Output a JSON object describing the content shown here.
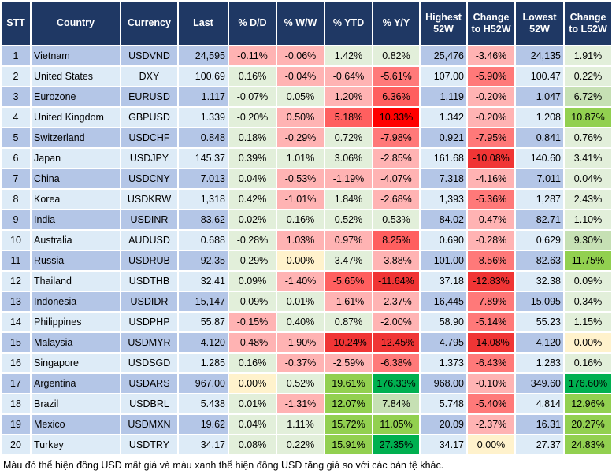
{
  "headers": [
    "STT",
    "Country",
    "Currency",
    "Last",
    "% D/D",
    "% W/W",
    "% YTD",
    "% Y/Y",
    "Highest 52W",
    "Change to H52W",
    "Lowest 52W",
    "Change to L52W"
  ],
  "colors": {
    "p": "#ffb3b3",
    "m": "#ff7979",
    "s": "#ff5f5f",
    "d": "#f03535",
    "x": "#ff0000",
    "g": "#e2efda",
    "h": "#c6e0b4",
    "G": "#92d050",
    "D": "#00b050",
    "y": "#fff2cc",
    "header": "#1f3864"
  },
  "rows": [
    {
      "stt": "1",
      "country": "Vietnam",
      "currency": "USDVND",
      "last": "24,595",
      "dd": "-0.11%",
      "ww": "-0.06%",
      "ytd": "1.42%",
      "yy": "0.82%",
      "high": "25,476",
      "ch": "-3.46%",
      "low": "24,135",
      "cl": "1.91%",
      "shade": [
        "p",
        "p",
        "g",
        "g",
        "p",
        "g"
      ]
    },
    {
      "stt": "2",
      "country": "United States",
      "currency": "DXY",
      "last": "100.69",
      "dd": "0.16%",
      "ww": "-0.04%",
      "ytd": "-0.64%",
      "yy": "-5.61%",
      "high": "107.00",
      "ch": "-5.90%",
      "low": "100.47",
      "cl": "0.22%",
      "shade": [
        "g",
        "p",
        "p",
        "m",
        "m",
        "g"
      ]
    },
    {
      "stt": "3",
      "country": "Eurozone",
      "currency": "EURUSD",
      "last": "1.117",
      "dd": "-0.07%",
      "ww": "0.05%",
      "ytd": "1.20%",
      "yy": "6.36%",
      "high": "1.119",
      "ch": "-0.20%",
      "low": "1.047",
      "cl": "6.72%",
      "shade": [
        "g",
        "g",
        "p",
        "s",
        "p",
        "h"
      ]
    },
    {
      "stt": "4",
      "country": "United Kingdom",
      "currency": "GBPUSD",
      "last": "1.339",
      "dd": "-0.20%",
      "ww": "0.50%",
      "ytd": "5.18%",
      "yy": "10.33%",
      "high": "1.342",
      "ch": "-0.20%",
      "low": "1.208",
      "cl": "10.87%",
      "shade": [
        "g",
        "p",
        "s",
        "x",
        "p",
        "G"
      ]
    },
    {
      "stt": "5",
      "country": "Switzerland",
      "currency": "USDCHF",
      "last": "0.848",
      "dd": "0.18%",
      "ww": "-0.29%",
      "ytd": "0.72%",
      "yy": "-7.98%",
      "high": "0.921",
      "ch": "-7.95%",
      "low": "0.841",
      "cl": "0.76%",
      "shade": [
        "g",
        "p",
        "g",
        "m",
        "m",
        "g"
      ]
    },
    {
      "stt": "6",
      "country": "Japan",
      "currency": "USDJPY",
      "last": "145.37",
      "dd": "0.39%",
      "ww": "1.01%",
      "ytd": "3.06%",
      "yy": "-2.85%",
      "high": "161.68",
      "ch": "-10.08%",
      "low": "140.60",
      "cl": "3.41%",
      "shade": [
        "g",
        "g",
        "g",
        "p",
        "d",
        "g"
      ]
    },
    {
      "stt": "7",
      "country": "China",
      "currency": "USDCNY",
      "last": "7.013",
      "dd": "0.04%",
      "ww": "-0.53%",
      "ytd": "-1.19%",
      "yy": "-4.07%",
      "high": "7.318",
      "ch": "-4.16%",
      "low": "7.011",
      "cl": "0.04%",
      "shade": [
        "g",
        "p",
        "p",
        "p",
        "p",
        "g"
      ]
    },
    {
      "stt": "8",
      "country": "Korea",
      "currency": "USDKRW",
      "last": "1,318",
      "dd": "0.42%",
      "ww": "-1.01%",
      "ytd": "1.84%",
      "yy": "-2.68%",
      "high": "1,393",
      "ch": "-5.36%",
      "low": "1,287",
      "cl": "2.43%",
      "shade": [
        "g",
        "p",
        "g",
        "p",
        "m",
        "g"
      ]
    },
    {
      "stt": "9",
      "country": "India",
      "currency": "USDINR",
      "last": "83.62",
      "dd": "0.02%",
      "ww": "0.16%",
      "ytd": "0.52%",
      "yy": "0.53%",
      "high": "84.02",
      "ch": "-0.47%",
      "low": "82.71",
      "cl": "1.10%",
      "shade": [
        "g",
        "g",
        "g",
        "g",
        "p",
        "g"
      ]
    },
    {
      "stt": "10",
      "country": "Australia",
      "currency": "AUDUSD",
      "last": "0.688",
      "dd": "-0.28%",
      "ww": "1.03%",
      "ytd": "0.97%",
      "yy": "8.25%",
      "high": "0.690",
      "ch": "-0.28%",
      "low": "0.629",
      "cl": "9.30%",
      "shade": [
        "g",
        "p",
        "p",
        "s",
        "p",
        "h"
      ]
    },
    {
      "stt": "11",
      "country": "Russia",
      "currency": "USDRUB",
      "last": "92.35",
      "dd": "-0.29%",
      "ww": "0.00%",
      "ytd": "3.47%",
      "yy": "-3.88%",
      "high": "101.00",
      "ch": "-8.56%",
      "low": "82.63",
      "cl": "11.75%",
      "shade": [
        "g",
        "y",
        "g",
        "p",
        "m",
        "G"
      ]
    },
    {
      "stt": "12",
      "country": "Thailand",
      "currency": "USDTHB",
      "last": "32.41",
      "dd": "0.09%",
      "ww": "-1.40%",
      "ytd": "-5.65%",
      "yy": "-11.64%",
      "high": "37.18",
      "ch": "-12.83%",
      "low": "32.38",
      "cl": "0.09%",
      "shade": [
        "g",
        "p",
        "s",
        "d",
        "d",
        "g"
      ]
    },
    {
      "stt": "13",
      "country": "Indonesia",
      "currency": "USDIDR",
      "last": "15,147",
      "dd": "-0.09%",
      "ww": "0.01%",
      "ytd": "-1.61%",
      "yy": "-2.37%",
      "high": "16,445",
      "ch": "-7.89%",
      "low": "15,095",
      "cl": "0.34%",
      "shade": [
        "g",
        "g",
        "p",
        "p",
        "m",
        "g"
      ]
    },
    {
      "stt": "14",
      "country": "Philippines",
      "currency": "USDPHP",
      "last": "55.87",
      "dd": "-0.15%",
      "ww": "0.40%",
      "ytd": "0.87%",
      "yy": "-2.00%",
      "high": "58.90",
      "ch": "-5.14%",
      "low": "55.23",
      "cl": "1.15%",
      "shade": [
        "p",
        "g",
        "g",
        "p",
        "m",
        "g"
      ]
    },
    {
      "stt": "15",
      "country": "Malaysia",
      "currency": "USDMYR",
      "last": "4.120",
      "dd": "-0.48%",
      "ww": "-1.90%",
      "ytd": "-10.24%",
      "yy": "-12.45%",
      "high": "4.795",
      "ch": "-14.08%",
      "low": "4.120",
      "cl": "0.00%",
      "shade": [
        "p",
        "p",
        "d",
        "d",
        "d",
        "y"
      ]
    },
    {
      "stt": "16",
      "country": "Singapore",
      "currency": "USDSGD",
      "last": "1.285",
      "dd": "0.16%",
      "ww": "-0.37%",
      "ytd": "-2.59%",
      "yy": "-6.38%",
      "high": "1.373",
      "ch": "-6.43%",
      "low": "1.283",
      "cl": "0.16%",
      "shade": [
        "g",
        "p",
        "p",
        "m",
        "m",
        "g"
      ]
    },
    {
      "stt": "17",
      "country": "Argentina",
      "currency": "USDARS",
      "last": "967.00",
      "dd": "0.00%",
      "ww": "0.52%",
      "ytd": "19.61%",
      "yy": "176.33%",
      "high": "968.00",
      "ch": "-0.10%",
      "low": "349.60",
      "cl": "176.60%",
      "shade": [
        "y",
        "g",
        "G",
        "D",
        "p",
        "D"
      ]
    },
    {
      "stt": "18",
      "country": "Brazil",
      "currency": "USDBRL",
      "last": "5.438",
      "dd": "0.01%",
      "ww": "-1.31%",
      "ytd": "12.07%",
      "yy": "7.84%",
      "high": "5.748",
      "ch": "-5.40%",
      "low": "4.814",
      "cl": "12.96%",
      "shade": [
        "g",
        "p",
        "G",
        "h",
        "m",
        "G"
      ]
    },
    {
      "stt": "19",
      "country": "Mexico",
      "currency": "USDMXN",
      "last": "19.62",
      "dd": "0.04%",
      "ww": "1.11%",
      "ytd": "15.72%",
      "yy": "11.05%",
      "high": "20.09",
      "ch": "-2.37%",
      "low": "16.31",
      "cl": "20.27%",
      "shade": [
        "g",
        "g",
        "G",
        "G",
        "p",
        "G"
      ]
    },
    {
      "stt": "20",
      "country": "Turkey",
      "currency": "USDTRY",
      "last": "34.17",
      "dd": "0.08%",
      "ww": "0.22%",
      "ytd": "15.91%",
      "yy": "27.35%",
      "high": "34.17",
      "ch": "0.00%",
      "low": "27.37",
      "cl": "24.83%",
      "shade": [
        "g",
        "g",
        "G",
        "D",
        "y",
        "G"
      ]
    }
  ],
  "footnote": "Màu đỏ thể hiện đồng USD mất giá và màu xanh thể hiện đồng USD tăng giá so với các bản tệ khác."
}
